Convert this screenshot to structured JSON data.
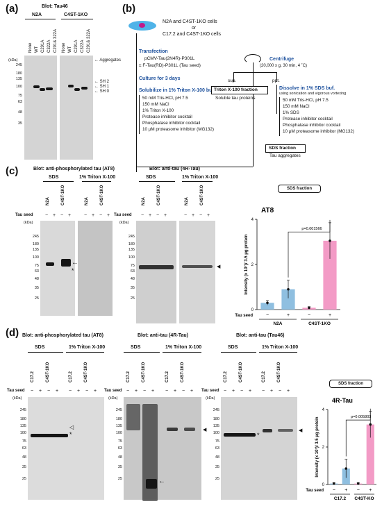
{
  "panel_a": {
    "label": "(a)",
    "title": "Blot: Tau46",
    "groups": [
      "N2A",
      "C4ST-1KO"
    ],
    "lanes": [
      "None",
      "WT",
      "C291A",
      "C322A",
      "C291& 322A"
    ],
    "kda_unit": "(kDa)",
    "kda_marks": [
      "245",
      "180",
      "135",
      "100",
      "75",
      "63",
      "48",
      "35"
    ],
    "annotations": [
      "Aggregates",
      "SH 2",
      "SH 1",
      "SH 0"
    ]
  },
  "panel_b": {
    "label": "(b)",
    "cells": "N2A and C4ST-1KO cells or C17.2 and C4ST-1KO cells",
    "cells_line1": "N2A and C4ST-1KO cells",
    "cells_line2": "or",
    "cells_line3": "C17.2 and C4ST-1KO cells",
    "transfection": "Transfection",
    "construct1": "pCMV-Tau(2N4R)-P301L",
    "construct2": "± F-Tau(RD)-P301L (Tau seed)",
    "culture": "Culture for 3 days",
    "solubilize": "Solubilize in 1% Triton X-100 buf.",
    "buffer1": [
      "50 mM Tris-HCl, pH 7.5",
      "150 mM NaCl",
      "1% Triton X-100",
      "Protease inhibitor cocktail",
      "Phosphatase inhibitor cocktail",
      "10 μM proteasome inhibitor (MG132)"
    ],
    "centrifuge": "Centrifuge",
    "centrifuge_cond": "(20,000 x g, 30 min, 4 ˚C)",
    "sup": "sup.",
    "ppt": "ppt.",
    "triton_fraction": "Triton X-100 fraction",
    "soluble": "Soluble tau proteins",
    "dissolve": "Dissolve in 1% SDS buf.",
    "dissolve_note": "using sonication and vigorous vortexing",
    "buffer2": [
      "50 mM Tris-HCl, pH 7.5",
      "150 mM NaCl",
      "1% SDS",
      "Protease inhibitor cocktail",
      "Phosphatase inhibitor cocktail",
      "10 μM proteasome inhibitor (MG132)"
    ],
    "sds_fraction": "SDS fraction",
    "aggregates": "Tau aggregates"
  },
  "panel_c": {
    "label": "(c)",
    "blot1_title": "Blot: anti-phosphorylated tau (AT8)",
    "blot2_title": "Blot: anti-tau (4R-Tau)",
    "fractions": [
      "SDS",
      "1% Triton X-100"
    ],
    "groups": [
      "N2A",
      "C4ST-1KO"
    ],
    "tau_seed": "Tau seed",
    "signs": [
      "−",
      "+",
      "−",
      "+"
    ],
    "kda_unit": "(kDa)",
    "kda_marks": [
      "245",
      "180",
      "135",
      "100",
      "75",
      "63",
      "48",
      "35",
      "25"
    ],
    "chart_box": "SDS fraction",
    "chart_data": {
      "type": "bar",
      "title": "AT8",
      "ylabel": "Intensity (x 10⁷)/ 3.5 μg protein",
      "ylim": [
        0,
        4
      ],
      "yticks": [
        "0",
        "2",
        "4"
      ],
      "categories": [
        "N2A −",
        "N2A +",
        "C4ST-1KO −",
        "C4ST-1KO +"
      ],
      "values": [
        0.3,
        0.9,
        0.08,
        3.05
      ],
      "errors": [
        0.1,
        0.4,
        0.05,
        0.8
      ],
      "colors": [
        "#8fbfe0",
        "#8fbfe0",
        "#f39bc6",
        "#f39bc6"
      ],
      "xgroups": [
        "N2A",
        "C4ST-1KO"
      ],
      "pvalue": "p=0.001566"
    }
  },
  "panel_d": {
    "label": "(d)",
    "blot1_title": "Blot: anti-phosphorylated tau (AT8)",
    "blot2_title": "Blot: anti-tau (4R-Tau)",
    "blot3_title": "Blot: anti-tau (Tau46)",
    "fractions": [
      "SDS",
      "1% Triton X-100"
    ],
    "groups": [
      "C17.2",
      "C4ST-1KO"
    ],
    "tau_seed": "Tau seed",
    "kda_unit": "(kDa)",
    "kda_marks": [
      "245",
      "180",
      "135",
      "100",
      "75",
      "63",
      "48",
      "35",
      "25"
    ],
    "chart_box": "SDS fraction",
    "chart_data": {
      "type": "bar",
      "title": "4R-Tau",
      "ylabel": "Intensity (x 10⁷)/ 3.5 μg protein",
      "ylim": [
        0,
        4
      ],
      "yticks": [
        "0",
        "2",
        "4"
      ],
      "categories": [
        "C17.2 −",
        "C17.2 +",
        "C4ST-KO −",
        "C4ST-KO +"
      ],
      "values": [
        0.05,
        0.85,
        0.05,
        3.2
      ],
      "errors": [
        0.05,
        0.5,
        0.05,
        0.7
      ],
      "colors": [
        "#8fbfe0",
        "#8fbfe0",
        "#f39bc6",
        "#f39bc6"
      ],
      "xgroups": [
        "C17.2",
        "C4ST-KO"
      ],
      "pvalue": "p=0.005803"
    }
  }
}
